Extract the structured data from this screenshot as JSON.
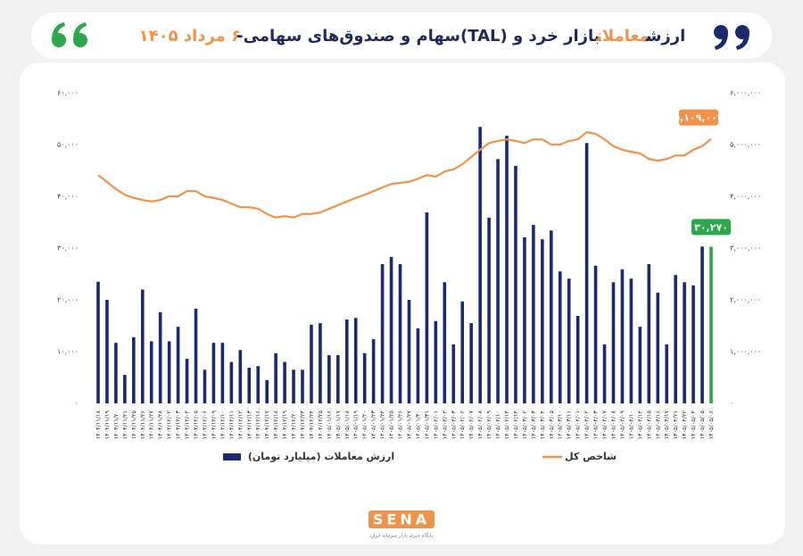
{
  "chart_data": {
    "type": "bar-line",
    "title": [
      {
        "text": "ارزش",
        "color": "#1f2a5c"
      },
      {
        "text": "معاملات",
        "color": "#f0924a"
      },
      {
        "text": "بازار خرد و (TAL)سهام و صندوق‌های سهامی-",
        "color": "#1f2a5c"
      },
      {
        "text": "۶ مرداد ۱۴۰۵",
        "color": "#f0924a"
      }
    ],
    "categories": [
      "۱۴۰۴/۱۱/۱۸",
      "۱۴۰۴/۱۱/۱۹",
      "۱۴۰۴/۱۱/۲۰",
      "۱۴۰۴/۱۱/۲۱",
      "۱۴۰۴/۱۱/۲۵",
      "۱۴۰۴/۱۱/۲۶",
      "۱۴۰۴/۱۱/۲۷",
      "۱۴۰۴/۱۱/۲۸",
      "۱۴۰۴/۱۲/۰۲",
      "۱۴۰۴/۱۲/۰۳",
      "۱۴۰۴/۱۲/۰۴",
      "۱۴۰۴/۱۲/۰۵",
      "۱۴۰۴/۱۲/۰۶",
      "۱۴۰۴/۱۲/۰۹",
      "۱۴۰۴/۱۲/۱۰",
      "۱۴۰۴/۱۲/۱۱",
      "۱۴۰۴/۱۲/۱۲",
      "۱۴۰۴/۱۲/۱۳",
      "۱۴۰۴/۱۲/۱۶",
      "۱۴۰۴/۱۲/۱۷",
      "۱۴۰۴/۱۲/۱۸",
      "۱۴۰۴/۱۲/۱۹",
      "۱۴۰۴/۱۲/۲۰",
      "۱۴۰۴/۱۲/۲۳",
      "۱۴۰۴/۱۲/۲۴",
      "۱۴۰۴/۱۲/۲۵",
      "۱۴۰۵/۰۱/۱۶",
      "۱۴۰۵/۰۱/۱۷",
      "۱۴۰۵/۰۱/۱۸",
      "۱۴۰۵/۰۱/۱۹",
      "۱۴۰۵/۰۱/۲۰",
      "۱۴۰۵/۰۱/۲۳",
      "۱۴۰۵/۰۱/۲۴",
      "۱۴۰۵/۰۱/۲۵",
      "۱۴۰۵/۰۱/۲۶",
      "۱۴۰۵/۰۱/۲۷",
      "۱۴۰۵/۰۱/۳۰",
      "۱۴۰۵/۰۱/۳۱",
      "۱۴۰۵/۰۲/۰۱",
      "۱۴۰۵/۰۲/۰۲",
      "۱۴۰۵/۰۲/۰۳",
      "۱۴۰۵/۰۲/۰۶",
      "۱۴۰۵/۰۲/۰۷",
      "۱۴۰۵/۰۲/۰۸",
      "۱۴۰۵/۰۲/۰۹",
      "۱۴۰۵/۰۲/۱۰",
      "۱۴۰۵/۰۲/۱۳",
      "۱۴۰۵/۰۲/۱۴",
      "۱۴۰۵/۰۳/۰۲",
      "۱۴۰۵/۰۳/۰۳",
      "۱۴۰۵/۰۳/۰۴",
      "۱۴۰۵/۰۳/۰۵",
      "۱۴۰۵/۰۳/۱۰",
      "۱۴۰۵/۰۳/۱۱",
      "۱۴۰۵/۰۴/۰۱",
      "۱۴۰۵/۰۴/۰۲",
      "۱۴۰۵/۰۴/۰۳",
      "۱۴۰۵/۰۴/۰۷",
      "۱۴۰۵/۰۴/۰۸",
      "۱۴۰۵/۰۴/۰۹",
      "۱۴۰۵/۰۴/۱۰",
      "۱۴۰۵/۰۴/۱۴",
      "۱۴۰۵/۰۴/۱۵",
      "۱۴۰۵/۰۴/۱۶",
      "۱۴۰۵/۰۴/۱۷",
      "۱۴۰۵/۰۴/۲۱",
      "۱۴۰۵/۰۴/۲۲",
      "۱۴۰۵/۰۵/۰۴",
      "۱۴۰۵/۰۵/۰۵",
      "۱۴۰۵/۰۵/۰۶"
    ],
    "series": [
      {
        "name": "ارزش معاملات (میلیارد تومان)",
        "type": "bar",
        "color": "#1b2a6b",
        "highlight_color": "#2aa84a",
        "values": [
          23500,
          20000,
          11700,
          5500,
          12800,
          22000,
          12000,
          17600,
          12000,
          14800,
          8600,
          18300,
          6500,
          11700,
          11700,
          8000,
          10300,
          6900,
          7200,
          4500,
          9700,
          8000,
          6500,
          6500,
          15200,
          15500,
          9300,
          9300,
          16200,
          16500,
          9700,
          12400,
          26900,
          28300,
          26900,
          20000,
          14500,
          36900,
          15900,
          23400,
          11400,
          19700,
          15500,
          53400,
          35900,
          47200,
          51700,
          45900,
          32100,
          34500,
          31700,
          33400,
          25500,
          24100,
          16900,
          50300,
          26600,
          11400,
          23400,
          25900,
          24100,
          14800,
          26900,
          21400,
          11400,
          24800,
          23400,
          22800,
          30300,
          30270
        ],
        "value_labels": [
          null,
          null,
          null,
          null,
          null,
          null,
          null,
          null,
          null,
          null,
          null,
          null,
          null,
          null,
          null,
          null,
          null,
          null,
          null,
          null,
          null,
          null,
          null,
          null,
          null,
          null,
          null,
          null,
          null,
          null,
          null,
          null,
          null,
          null,
          null,
          null,
          null,
          null,
          null,
          null,
          null,
          null,
          null,
          null,
          null,
          null,
          null,
          null,
          null,
          null,
          null,
          null,
          null,
          null,
          null,
          null,
          null,
          null,
          null,
          null,
          null,
          null,
          null,
          null,
          null,
          null,
          null,
          null,
          null,
          "۳۰,۲۷۰"
        ]
      },
      {
        "name": "شاخص کل",
        "type": "line",
        "axis": "y2",
        "color": "#f0924a",
        "values": [
          4410000,
          4280000,
          4140000,
          4030000,
          3970000,
          3930000,
          3900000,
          3930000,
          4000000,
          4000000,
          4100000,
          4100000,
          4000000,
          3970000,
          3930000,
          3860000,
          3790000,
          3790000,
          3760000,
          3660000,
          3590000,
          3620000,
          3590000,
          3660000,
          3660000,
          3690000,
          3760000,
          3830000,
          3900000,
          3970000,
          4030000,
          4100000,
          4170000,
          4240000,
          4260000,
          4280000,
          4340000,
          4410000,
          4380000,
          4480000,
          4520000,
          4620000,
          4760000,
          4900000,
          5030000,
          5070000,
          5100000,
          5070000,
          5030000,
          5100000,
          5100000,
          5000000,
          5000000,
          5070000,
          5100000,
          5240000,
          5210000,
          5100000,
          4970000,
          4900000,
          4860000,
          4830000,
          4720000,
          4690000,
          4720000,
          4790000,
          4790000,
          4900000,
          4970000,
          5109004
        ],
        "value_labels": [
          null,
          null,
          null,
          null,
          null,
          null,
          null,
          null,
          null,
          null,
          null,
          null,
          null,
          null,
          null,
          null,
          null,
          null,
          null,
          null,
          null,
          null,
          null,
          null,
          null,
          null,
          null,
          null,
          null,
          null,
          null,
          null,
          null,
          null,
          null,
          null,
          null,
          null,
          null,
          null,
          null,
          null,
          null,
          null,
          null,
          null,
          null,
          null,
          null,
          null,
          null,
          null,
          null,
          null,
          null,
          null,
          null,
          null,
          null,
          null,
          null,
          null,
          null,
          null,
          null,
          null,
          null,
          null,
          null,
          "۵,۱۰۹,۰۰۴"
        ]
      }
    ],
    "ylim": [
      0,
      60000
    ],
    "yticks": [
      {
        "value": 0,
        "label": "۰"
      },
      {
        "value": 10000,
        "label": "۱۰,۰۰۰"
      },
      {
        "value": 20000,
        "label": "۲۰,۰۰۰"
      },
      {
        "value": 30000,
        "label": "۳۰,۰۰۰"
      },
      {
        "value": 40000,
        "label": "۴۰,۰۰۰"
      },
      {
        "value": 50000,
        "label": "۵۰,۰۰۰"
      },
      {
        "value": 60000,
        "label": "۶۰,۰۰۰"
      }
    ],
    "y2lim": [
      0,
      6000000
    ],
    "y2ticks": [
      {
        "value": 0,
        "label": "۰"
      },
      {
        "value": 1000000,
        "label": "۱,۰۰۰,۰۰۰"
      },
      {
        "value": 2000000,
        "label": "۲,۰۰۰,۰۰۰"
      },
      {
        "value": 3000000,
        "label": "۳,۰۰۰,۰۰۰"
      },
      {
        "value": 4000000,
        "label": "۴,۰۰۰,۰۰۰"
      },
      {
        "value": 5000000,
        "label": "۵,۰۰۰,۰۰۰"
      },
      {
        "value": 6000000,
        "label": "۶,۰۰۰,۰۰۰"
      }
    ],
    "grid": false,
    "legend": "bottom",
    "logo": {
      "name": "SENA",
      "tagline": "پایگاه خبری بازار سرمایه ایران"
    }
  }
}
